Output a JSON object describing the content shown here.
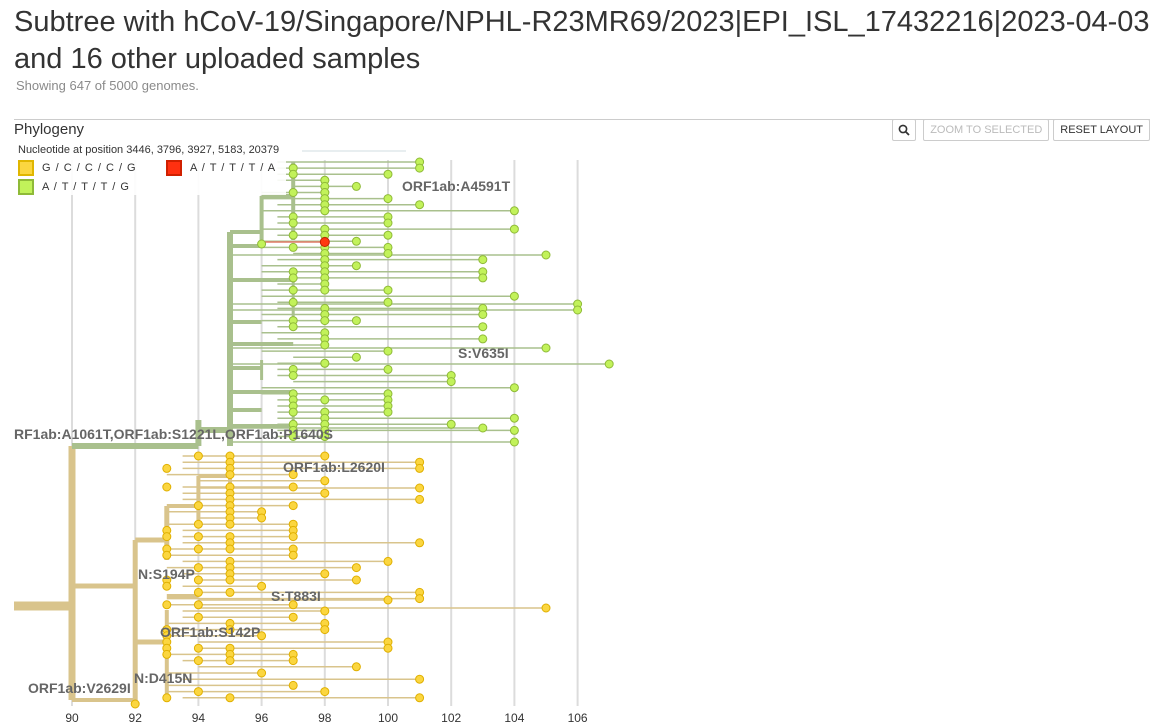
{
  "header": {
    "title": "Subtree with hCoV-19/Singapore/NPHL-R23MR69/2023|EPI_ISL_17432216|2023-04-03 and 16 other uploaded samples",
    "genome_count": "Showing 647 of 5000 genomes."
  },
  "panel": {
    "title": "Phylogeny",
    "zoom_to_selected_label": "ZOOM TO SELECTED",
    "reset_layout_label": "RESET LAYOUT",
    "search_icon": "magnifier-icon"
  },
  "legend": {
    "title": "Nucleotide at position 3446, 3796, 3927, 5183, 20379",
    "items": [
      {
        "label": "G / C / C / C / G",
        "fill": "#fbd640",
        "stroke": "#e0b600"
      },
      {
        "label": "A / T / T / T / A",
        "fill": "#ff3010",
        "stroke": "#d02000"
      },
      {
        "label": "A / T / T / T / G",
        "fill": "#c2f25a",
        "stroke": "#8fba38"
      }
    ]
  },
  "colors": {
    "yellow_branch": "#d9c48c",
    "green_branch": "#a9c08d",
    "yellow_tip": "#fbd640",
    "green_tip": "#c2f25a",
    "red_tip": "#ff3a10",
    "red_branch": "#e07a66"
  },
  "tree": {
    "axis_ticks": [
      "90",
      "92",
      "94",
      "96",
      "98",
      "100",
      "102",
      "104",
      "106"
    ],
    "mutation_labels": [
      "ORF1ab:A4591T",
      "S:V635I",
      "RF1ab:A1061T,ORF1ab:S1221L,ORF1ab:P1640S",
      "ORF1ab:L2620I",
      "N:S194P",
      "S:T883I",
      "ORF1ab:S142P",
      "N:D415N",
      "ORF1ab:V2629I"
    ]
  }
}
